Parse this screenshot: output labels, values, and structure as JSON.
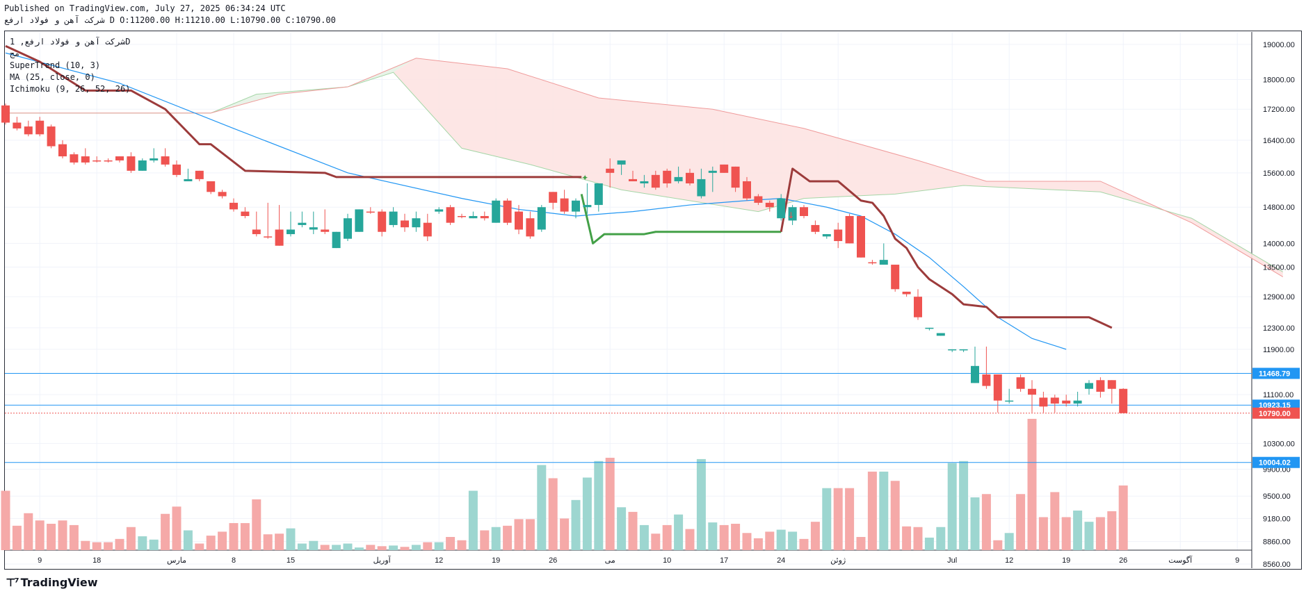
{
  "header": {
    "published": "Published on TradingView.com, July 27, 2025 06:34:24 UTC",
    "ohlc_line": "شرکت آهن و فولاد ارفع D O:11200.00 H:11210.00 L:10790.00 C:10790.00"
  },
  "legend": {
    "symbol": "شرکت آهن و فولاد ارفع, 1D",
    "exchange": "مج",
    "indicators": [
      "SuperTrend (10, 3)",
      "MA (25, close, 0)",
      "Ichimoku (9, 26, 52, 26)"
    ]
  },
  "footer": {
    "brand": "TradingView"
  },
  "chart_data": {
    "type": "candlestick",
    "ylim": [
      8560,
      19200
    ],
    "yticks": [
      19000,
      18000,
      17200,
      16400,
      15600,
      14800,
      14000,
      13500,
      12900,
      12300,
      11900,
      11100,
      10300,
      9900,
      9500,
      9180,
      8860,
      8560
    ],
    "xticks": [
      {
        "label": "9",
        "i": 3
      },
      {
        "label": "18",
        "i": 8
      },
      {
        "label": "مارس",
        "i": 15
      },
      {
        "label": "8",
        "i": 20
      },
      {
        "label": "15",
        "i": 25
      },
      {
        "label": "آوریل",
        "i": 33
      },
      {
        "label": "12",
        "i": 38
      },
      {
        "label": "19",
        "i": 43
      },
      {
        "label": "26",
        "i": 48
      },
      {
        "label": "می",
        "i": 53
      },
      {
        "label": "10",
        "i": 58
      },
      {
        "label": "17",
        "i": 63
      },
      {
        "label": "24",
        "i": 68
      },
      {
        "label": "ژوئن",
        "i": 73
      },
      {
        "label": "Jul",
        "i": 83
      },
      {
        "label": "12",
        "i": 88
      },
      {
        "label": "19",
        "i": 93
      },
      {
        "label": "26",
        "i": 98
      },
      {
        "label": "آگوست",
        "i": 103
      },
      {
        "label": "9",
        "i": 108
      }
    ],
    "price_lines": [
      {
        "value": 11468.79,
        "label": "11468.79",
        "color": "#2196f3"
      },
      {
        "value": 10923.15,
        "label": "10923.15",
        "color": "#2196f3"
      },
      {
        "value": 10004.02,
        "label": "10004.02",
        "color": "#2196f3"
      }
    ],
    "last_price": {
      "value": 10790,
      "label": "10790.00",
      "color": "#ef5350"
    },
    "colors": {
      "up": "#26a69a",
      "down": "#ef5350",
      "vol_up": "#9dd6d0",
      "vol_down": "#f5a9a8",
      "ma": "#2196f3",
      "st_up": "#43a047",
      "st_down": "#9c3b3b",
      "cloud_bull": "#e5f2e6",
      "cloud_bear": "#fde3e2",
      "span_a": "#a5d6a7",
      "span_b": "#ef9a9a"
    },
    "candles": [
      {
        "o": 17300,
        "h": 17350,
        "l": 16800,
        "c": 16850,
        "v": 900
      },
      {
        "o": 16850,
        "h": 17000,
        "l": 16650,
        "c": 16700,
        "v": 370
      },
      {
        "o": 16750,
        "h": 16900,
        "l": 16500,
        "c": 16550,
        "v": 560
      },
      {
        "o": 16900,
        "h": 17000,
        "l": 16500,
        "c": 16550,
        "v": 450
      },
      {
        "o": 16750,
        "h": 16800,
        "l": 16200,
        "c": 16250,
        "v": 400
      },
      {
        "o": 16300,
        "h": 16400,
        "l": 15950,
        "c": 16000,
        "v": 450
      },
      {
        "o": 16050,
        "h": 16100,
        "l": 15800,
        "c": 15850,
        "v": 380
      },
      {
        "o": 16000,
        "h": 16200,
        "l": 15800,
        "c": 15850,
        "v": 140
      },
      {
        "o": 15900,
        "h": 16000,
        "l": 15850,
        "c": 15900,
        "v": 120
      },
      {
        "o": 15900,
        "h": 15950,
        "l": 15850,
        "c": 15900,
        "v": 120
      },
      {
        "o": 16000,
        "h": 16000,
        "l": 15850,
        "c": 15900,
        "v": 170
      },
      {
        "o": 16000,
        "h": 16100,
        "l": 15600,
        "c": 15650,
        "v": 350
      },
      {
        "o": 15650,
        "h": 15950,
        "l": 15650,
        "c": 15900,
        "v": 210,
        "up": true
      },
      {
        "o": 15900,
        "h": 16200,
        "l": 15850,
        "c": 15950,
        "v": 160,
        "up": true
      },
      {
        "o": 16000,
        "h": 16200,
        "l": 15750,
        "c": 15800,
        "v": 550
      },
      {
        "o": 15800,
        "h": 15900,
        "l": 15500,
        "c": 15550,
        "v": 660
      },
      {
        "o": 15450,
        "h": 15700,
        "l": 15400,
        "c": 15400,
        "v": 300,
        "up": true
      },
      {
        "o": 15650,
        "h": 15650,
        "l": 15400,
        "c": 15450,
        "v": 100
      },
      {
        "o": 15400,
        "h": 15400,
        "l": 15100,
        "c": 15150,
        "v": 220
      },
      {
        "o": 15150,
        "h": 15200,
        "l": 15000,
        "c": 15050,
        "v": 280
      },
      {
        "o": 14900,
        "h": 15000,
        "l": 14700,
        "c": 14750,
        "v": 410
      },
      {
        "o": 14700,
        "h": 14800,
        "l": 14550,
        "c": 14600,
        "v": 410
      },
      {
        "o": 14300,
        "h": 14700,
        "l": 14150,
        "c": 14200,
        "v": 770
      },
      {
        "o": 14150,
        "h": 14900,
        "l": 14100,
        "c": 14150,
        "v": 240
      },
      {
        "o": 14300,
        "h": 14850,
        "l": 13950,
        "c": 13950,
        "v": 250
      },
      {
        "o": 14200,
        "h": 14700,
        "l": 14150,
        "c": 14300,
        "v": 330,
        "up": true
      },
      {
        "o": 14400,
        "h": 14700,
        "l": 14350,
        "c": 14450,
        "v": 100,
        "up": true
      },
      {
        "o": 14350,
        "h": 14700,
        "l": 14200,
        "c": 14300,
        "v": 140,
        "up": true
      },
      {
        "o": 14300,
        "h": 14750,
        "l": 14200,
        "c": 14250,
        "v": 80
      },
      {
        "o": 13900,
        "h": 14250,
        "l": 13900,
        "c": 14250,
        "v": 80,
        "up": true
      },
      {
        "o": 14100,
        "h": 14650,
        "l": 14050,
        "c": 14550,
        "v": 100,
        "up": true
      },
      {
        "o": 14250,
        "h": 14750,
        "l": 14250,
        "c": 14750,
        "v": 40,
        "up": true
      },
      {
        "o": 14700,
        "h": 14800,
        "l": 14650,
        "c": 14700,
        "v": 80
      },
      {
        "o": 14700,
        "h": 14750,
        "l": 14150,
        "c": 14250,
        "v": 60
      },
      {
        "o": 14400,
        "h": 14800,
        "l": 14350,
        "c": 14700,
        "v": 70,
        "up": true
      },
      {
        "o": 14500,
        "h": 14650,
        "l": 14250,
        "c": 14350,
        "v": 50
      },
      {
        "o": 14350,
        "h": 14700,
        "l": 14250,
        "c": 14550,
        "v": 80,
        "up": true
      },
      {
        "o": 14450,
        "h": 14650,
        "l": 14050,
        "c": 14150,
        "v": 120
      },
      {
        "o": 14700,
        "h": 14800,
        "l": 14650,
        "c": 14750,
        "v": 120,
        "up": true
      },
      {
        "o": 14800,
        "h": 14850,
        "l": 14400,
        "c": 14450,
        "v": 200
      },
      {
        "o": 14600,
        "h": 14650,
        "l": 14550,
        "c": 14600,
        "v": 150
      },
      {
        "o": 14550,
        "h": 14700,
        "l": 14550,
        "c": 14600,
        "v": 900,
        "up": true
      },
      {
        "o": 14550,
        "h": 14700,
        "l": 14500,
        "c": 14600,
        "v": 300
      },
      {
        "o": 14450,
        "h": 15000,
        "l": 14450,
        "c": 14950,
        "v": 350,
        "up": true
      },
      {
        "o": 14950,
        "h": 15000,
        "l": 14400,
        "c": 14450,
        "v": 370
      },
      {
        "o": 14700,
        "h": 14850,
        "l": 14200,
        "c": 14300,
        "v": 470
      },
      {
        "o": 14550,
        "h": 14700,
        "l": 14100,
        "c": 14150,
        "v": 470
      },
      {
        "o": 14300,
        "h": 14850,
        "l": 14250,
        "c": 14800,
        "v": 1290,
        "up": true
      },
      {
        "o": 14900,
        "h": 15150,
        "l": 14750,
        "c": 15150,
        "v": 1090
      },
      {
        "o": 15000,
        "h": 15200,
        "l": 14650,
        "c": 14700,
        "v": 480
      },
      {
        "o": 14700,
        "h": 15000,
        "l": 14550,
        "c": 14950,
        "v": 760,
        "up": true
      },
      {
        "o": 14800,
        "h": 15350,
        "l": 14650,
        "c": 14850,
        "v": 1100,
        "up": true
      },
      {
        "o": 14850,
        "h": 15350,
        "l": 14700,
        "c": 15350,
        "v": 1350,
        "up": true
      },
      {
        "o": 15600,
        "h": 15950,
        "l": 15250,
        "c": 15700,
        "v": 1400
      },
      {
        "o": 15900,
        "h": 15900,
        "l": 15550,
        "c": 15800,
        "v": 650,
        "up": true
      },
      {
        "o": 15450,
        "h": 15650,
        "l": 15400,
        "c": 15400,
        "v": 580
      },
      {
        "o": 15350,
        "h": 15550,
        "l": 15250,
        "c": 15400,
        "v": 380,
        "up": true
      },
      {
        "o": 15550,
        "h": 15650,
        "l": 15200,
        "c": 15250,
        "v": 250
      },
      {
        "o": 15650,
        "h": 15700,
        "l": 15250,
        "c": 15350,
        "v": 380
      },
      {
        "o": 15500,
        "h": 15750,
        "l": 15350,
        "c": 15400,
        "v": 540,
        "up": true
      },
      {
        "o": 15600,
        "h": 15700,
        "l": 15300,
        "c": 15350,
        "v": 320
      },
      {
        "o": 15450,
        "h": 15700,
        "l": 15000,
        "c": 15050,
        "v": 1380,
        "up": true
      },
      {
        "o": 15600,
        "h": 15750,
        "l": 15150,
        "c": 15650,
        "v": 420,
        "up": true
      },
      {
        "o": 15800,
        "h": 15800,
        "l": 15600,
        "c": 15600,
        "v": 380
      },
      {
        "o": 15750,
        "h": 15750,
        "l": 15150,
        "c": 15250,
        "v": 400
      },
      {
        "o": 15400,
        "h": 15500,
        "l": 14950,
        "c": 15000,
        "v": 260
      },
      {
        "o": 15050,
        "h": 15100,
        "l": 14850,
        "c": 14900,
        "v": 180
      },
      {
        "o": 14900,
        "h": 14950,
        "l": 14700,
        "c": 14800,
        "v": 280
      },
      {
        "o": 15000,
        "h": 15100,
        "l": 14500,
        "c": 14550,
        "v": 310,
        "up": true
      },
      {
        "o": 14500,
        "h": 14850,
        "l": 14400,
        "c": 14800,
        "v": 280,
        "up": true
      },
      {
        "o": 14800,
        "h": 14850,
        "l": 14550,
        "c": 14600,
        "v": 170
      },
      {
        "o": 14400,
        "h": 14500,
        "l": 14200,
        "c": 14250,
        "v": 430
      },
      {
        "o": 14200,
        "h": 14200,
        "l": 14100,
        "c": 14150,
        "v": 940,
        "up": true
      },
      {
        "o": 14300,
        "h": 14450,
        "l": 13900,
        "c": 14050,
        "v": 940
      },
      {
        "o": 14600,
        "h": 14650,
        "l": 14000,
        "c": 14000,
        "v": 940
      },
      {
        "o": 14600,
        "h": 14600,
        "l": 13700,
        "c": 13700,
        "v": 200
      },
      {
        "o": 13600,
        "h": 13650,
        "l": 13550,
        "c": 13600,
        "v": 1190
      },
      {
        "o": 13650,
        "h": 14000,
        "l": 13550,
        "c": 13550,
        "v": 1190,
        "up": true
      },
      {
        "o": 13550,
        "h": 13550,
        "l": 13000,
        "c": 13050,
        "v": 1050
      },
      {
        "o": 13000,
        "h": 13000,
        "l": 12900,
        "c": 12950,
        "v": 360
      },
      {
        "o": 12900,
        "h": 13050,
        "l": 12450,
        "c": 12500,
        "v": 350
      },
      {
        "o": 12300,
        "h": 12300,
        "l": 12250,
        "c": 12300,
        "v": 190,
        "up": true
      },
      {
        "o": 12200,
        "h": 12200,
        "l": 12150,
        "c": 12150,
        "v": 350,
        "up": true
      },
      {
        "o": 11900,
        "h": 11900,
        "l": 11850,
        "c": 11900,
        "v": 1320,
        "up": true
      },
      {
        "o": 11900,
        "h": 11900,
        "l": 11850,
        "c": 11900,
        "v": 1350,
        "up": true
      },
      {
        "o": 11600,
        "h": 11950,
        "l": 11300,
        "c": 11300,
        "v": 800,
        "up": true
      },
      {
        "o": 11450,
        "h": 11950,
        "l": 11200,
        "c": 11250,
        "v": 850
      },
      {
        "o": 11450,
        "h": 11450,
        "l": 10800,
        "c": 11000,
        "v": 150
      },
      {
        "o": 11000,
        "h": 11200,
        "l": 10950,
        "c": 11000,
        "v": 260,
        "up": true
      },
      {
        "o": 11400,
        "h": 11450,
        "l": 11150,
        "c": 11200,
        "v": 850
      },
      {
        "o": 11200,
        "h": 11350,
        "l": 10800,
        "c": 11100,
        "v": 1990
      },
      {
        "o": 11050,
        "h": 11150,
        "l": 10800,
        "c": 10900,
        "v": 500
      },
      {
        "o": 11050,
        "h": 11100,
        "l": 10800,
        "c": 10950,
        "v": 880
      },
      {
        "o": 11000,
        "h": 11100,
        "l": 10900,
        "c": 10950,
        "v": 500
      },
      {
        "o": 10950,
        "h": 11150,
        "l": 10900,
        "c": 11000,
        "v": 600,
        "up": true
      },
      {
        "o": 11200,
        "h": 11350,
        "l": 11100,
        "c": 11300,
        "v": 430,
        "up": true
      },
      {
        "o": 11350,
        "h": 11400,
        "l": 11050,
        "c": 11150,
        "v": 500
      },
      {
        "o": 11350,
        "h": 11350,
        "l": 10950,
        "c": 11200,
        "v": 590
      },
      {
        "o": 11200,
        "h": 11210,
        "l": 10790,
        "c": 10790,
        "v": 980
      }
    ],
    "ma": [
      [
        0,
        18750
      ],
      [
        10,
        17900
      ],
      [
        20,
        16700
      ],
      [
        30,
        15600
      ],
      [
        40,
        15000
      ],
      [
        45,
        14750
      ],
      [
        50,
        14600
      ],
      [
        55,
        14700
      ],
      [
        60,
        14850
      ],
      [
        65,
        14950
      ],
      [
        68,
        15000
      ],
      [
        70,
        14900
      ],
      [
        72,
        14800
      ],
      [
        75,
        14600
      ],
      [
        78,
        14200
      ],
      [
        81,
        13700
      ],
      [
        84,
        13100
      ],
      [
        87,
        12500
      ],
      [
        90,
        12100
      ],
      [
        93,
        11900
      ]
    ],
    "supertrend_down_1": [
      [
        0,
        18950
      ],
      [
        3,
        18500
      ],
      [
        7,
        17700
      ],
      [
        11,
        17700
      ],
      [
        14,
        17200
      ],
      [
        17,
        16300
      ],
      [
        18,
        16300
      ],
      [
        21,
        15650
      ],
      [
        28,
        15600
      ],
      [
        29,
        15500
      ],
      [
        50,
        15500
      ],
      [
        50.5,
        15500
      ]
    ],
    "supertrend_up": [
      [
        50.5,
        15100
      ],
      [
        51.5,
        14000
      ],
      [
        52.5,
        14200
      ],
      [
        56,
        14200
      ],
      [
        57,
        14250
      ],
      [
        68,
        14250
      ]
    ],
    "supertrend_down_2": [
      [
        68,
        14250
      ],
      [
        69,
        15700
      ],
      [
        70.5,
        15400
      ],
      [
        73,
        15400
      ],
      [
        75,
        14950
      ],
      [
        76,
        14900
      ],
      [
        77,
        14600
      ],
      [
        78,
        14100
      ],
      [
        79,
        13900
      ],
      [
        80,
        13500
      ],
      [
        81,
        13250
      ],
      [
        83,
        12950
      ],
      [
        84,
        12750
      ],
      [
        86,
        12700
      ],
      [
        87,
        12500
      ],
      [
        92,
        12500
      ],
      [
        95,
        12500
      ],
      [
        96,
        12400
      ],
      [
        97,
        12300
      ]
    ]
  }
}
